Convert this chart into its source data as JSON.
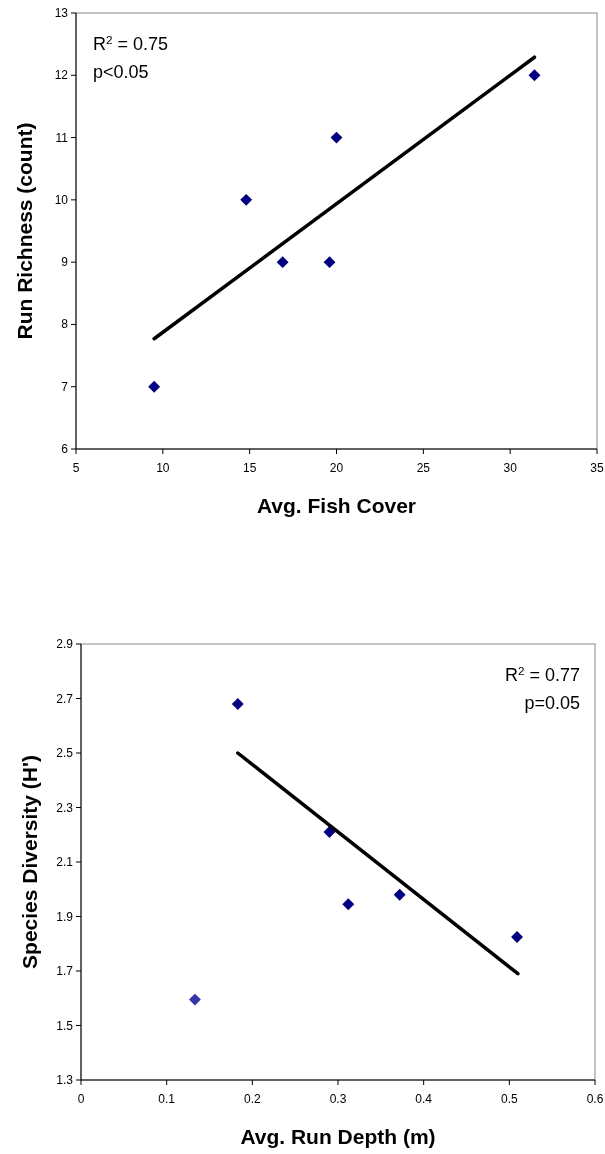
{
  "chart_data": [
    {
      "type": "scatter",
      "xlabel": "Avg. Fish Cover",
      "ylabel": "Run Richness (count)",
      "annotations": [
        "R$^{2}$ = 0.75",
        "p<0.05"
      ],
      "xlim": [
        5,
        35
      ],
      "xticks": [
        5,
        10,
        15,
        20,
        25,
        30,
        35
      ],
      "ylim": [
        6,
        13
      ],
      "yticks": [
        6,
        7,
        8,
        9,
        10,
        11,
        12,
        13
      ],
      "series": [
        {
          "color": "#000080",
          "marker": "diamond",
          "x": [
            9.5,
            14.8,
            16.9,
            19.6,
            20.0,
            31.4
          ],
          "values": [
            7,
            10,
            9,
            9,
            11,
            12
          ]
        },
        {
          "type": "line",
          "marker": "none",
          "color": "#000000",
          "x": [
            9.5,
            31.4
          ],
          "values": [
            7.77,
            12.29
          ]
        }
      ]
    },
    {
      "type": "scatter",
      "xlabel": "Avg. Run Depth (m)",
      "ylabel": "Species Diversity (H')",
      "annotations": [
        "R$^{2}$ = 0.77",
        "p=0.05"
      ],
      "xlim": [
        0,
        0.6
      ],
      "xticks": [
        0,
        0.1,
        0.2,
        0.3,
        0.4,
        0.5,
        0.6
      ],
      "ylim": [
        1.3,
        2.9
      ],
      "yticks": [
        1.3,
        1.5,
        1.7,
        1.9,
        2.1,
        2.3,
        2.5,
        2.7,
        2.9
      ],
      "series": [
        {
          "color": "#000080",
          "marker": "diamond",
          "x": [
            0.183,
            0.29,
            0.312,
            0.372,
            0.509
          ],
          "values": [
            2.68,
            2.21,
            1.945,
            1.98,
            1.825
          ]
        },
        {
          "color": "#3333aa",
          "marker": "diamond",
          "x": [
            0.133
          ],
          "values": [
            1.595
          ]
        },
        {
          "type": "line",
          "marker": "none",
          "color": "#000000",
          "x": [
            0.183,
            0.51
          ],
          "values": [
            2.5,
            1.69
          ]
        }
      ]
    }
  ]
}
